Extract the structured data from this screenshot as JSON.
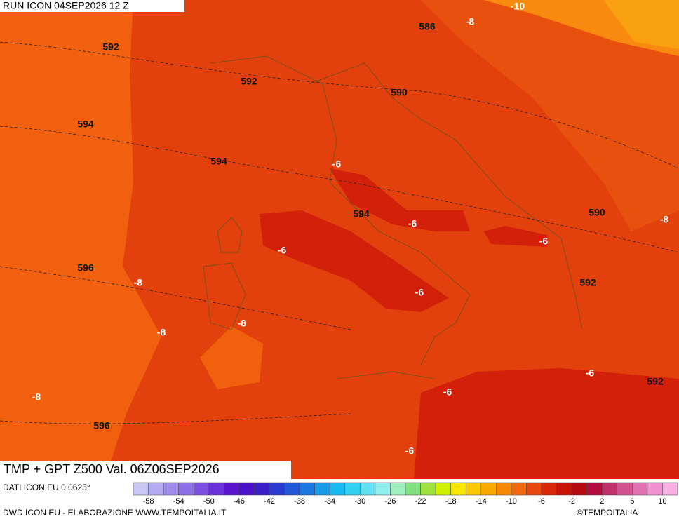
{
  "header": {
    "title": "RUN ICON 04SEP2026 12 Z"
  },
  "map": {
    "title": "TMP + GPT Z500 Val. 06Z06SEP2026",
    "contour_labels": [
      "586",
      "-8",
      "-10",
      "592",
      "592",
      "590",
      "594",
      "594",
      "-6",
      "594",
      "-6",
      "590",
      "-8",
      "-6",
      "-6",
      "596",
      "-8",
      "592",
      "-6",
      "-8",
      "-8",
      "-6",
      "592",
      "-6",
      "-8",
      "596",
      "-6"
    ]
  },
  "legend": {
    "source": "DATI ICON EU 0.0625°",
    "colors": [
      "#c8c8f5",
      "#b4aaf0",
      "#a08ceb",
      "#8c6ee6",
      "#7a50e0",
      "#6a32d8",
      "#5a14d0",
      "#4a10c8",
      "#3a1ec8",
      "#2a3ad0",
      "#2058d8",
      "#1a78e0",
      "#1898e8",
      "#18b8f0",
      "#30d0f0",
      "#60e0f0",
      "#90f0f0",
      "#a0f0c0",
      "#80e080",
      "#a0e040",
      "#d0f000",
      "#f8e800",
      "#f8c800",
      "#f8a800",
      "#f88800",
      "#f06810",
      "#e84810",
      "#d82808",
      "#c81408",
      "#b40a10",
      "#b40a40",
      "#c0306a",
      "#d0508e",
      "#e070b0",
      "#f090d0",
      "#f8b0e0"
    ],
    "ticks": [
      -58,
      -54,
      -50,
      -46,
      -42,
      -38,
      -34,
      -30,
      -26,
      -22,
      -18,
      -14,
      -10,
      -6,
      -2,
      2,
      6,
      10
    ],
    "range": [
      -60,
      12
    ]
  },
  "footer": {
    "credit": "DWD ICON EU - ELABORAZIONE WWW.TEMPOITALIA.IT",
    "copyright": "©TEMPOITALIA"
  }
}
